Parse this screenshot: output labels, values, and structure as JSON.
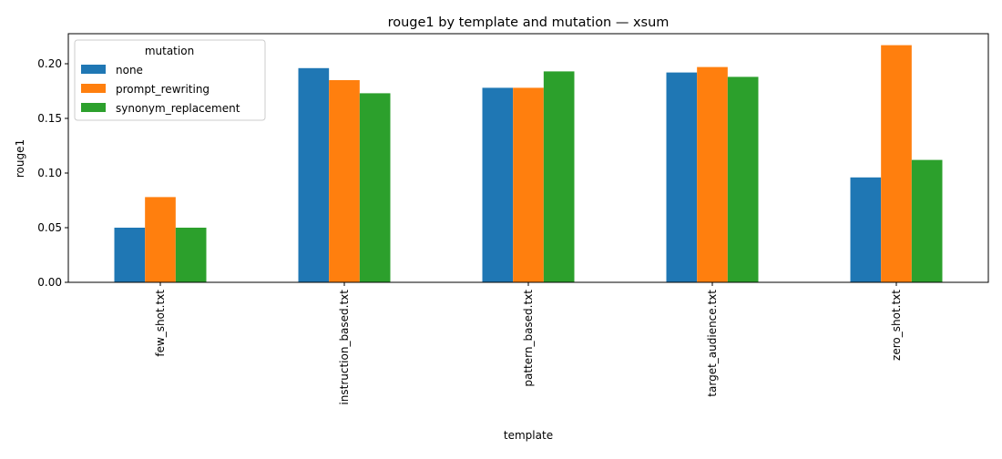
{
  "chart_data": {
    "type": "bar",
    "title": "rouge1 by template and mutation — xsum",
    "xlabel": "template",
    "ylabel": "rouge1",
    "categories": [
      "few_shot.txt",
      "instruction_based.txt",
      "pattern_based.txt",
      "target_audience.txt",
      "zero_shot.txt"
    ],
    "series": [
      {
        "name": "none",
        "color": "#1f77b4",
        "values": [
          0.05,
          0.196,
          0.178,
          0.192,
          0.096
        ]
      },
      {
        "name": "prompt_rewriting",
        "color": "#ff7f0e",
        "values": [
          0.078,
          0.185,
          0.178,
          0.197,
          0.217
        ]
      },
      {
        "name": "synonym_replacement",
        "color": "#2ca02c",
        "values": [
          0.05,
          0.173,
          0.193,
          0.188,
          0.112
        ]
      }
    ],
    "ylim": [
      0,
      0.2275
    ],
    "yticks": [
      0.0,
      0.05,
      0.1,
      0.15,
      0.2
    ],
    "ytick_labels": [
      "0.00",
      "0.05",
      "0.10",
      "0.15",
      "0.20"
    ],
    "legend": {
      "title": "mutation",
      "placement": "top-left"
    },
    "grid": false
  }
}
